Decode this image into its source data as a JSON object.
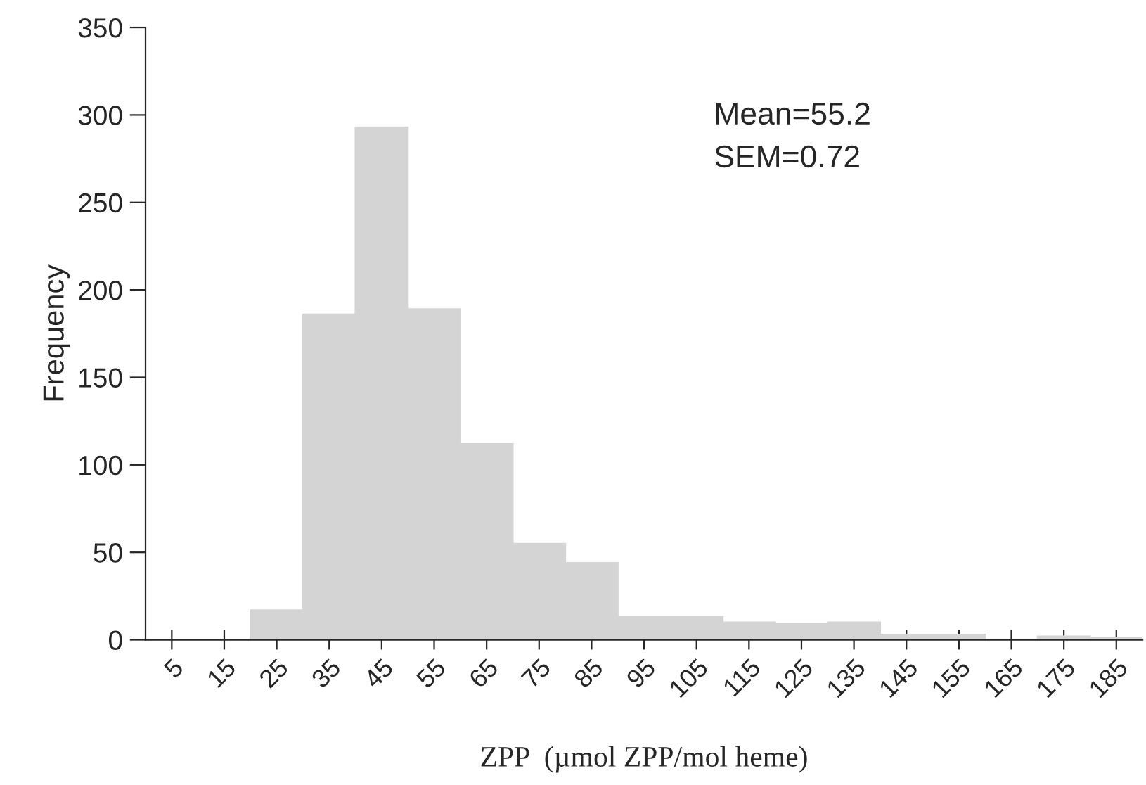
{
  "chart_data": {
    "type": "histogram",
    "xlabel": "ZPP  (µmol ZPP/mol heme)",
    "ylabel": "Frequency",
    "bins": [
      0,
      10,
      20,
      30,
      40,
      50,
      60,
      70,
      80,
      90,
      100,
      110,
      120,
      130,
      140,
      150,
      160,
      170,
      180,
      190
    ],
    "values": [
      null,
      null,
      17,
      186,
      293,
      189,
      112,
      55,
      44,
      13,
      13,
      10,
      9,
      10,
      3,
      3,
      0,
      2,
      1
    ],
    "color": "#d4d4d4",
    "xlim": [
      0,
      190
    ],
    "xticks": [
      5,
      15,
      25,
      35,
      45,
      55,
      65,
      75,
      85,
      95,
      105,
      115,
      125,
      135,
      145,
      155,
      165,
      175,
      185
    ],
    "ylim": [
      0,
      350
    ],
    "yticks": [
      0,
      50,
      100,
      150,
      200,
      250,
      300,
      350
    ],
    "annotations": [
      "Mean=55.2",
      "SEM=0.72"
    ],
    "grid": false,
    "legend": false
  }
}
